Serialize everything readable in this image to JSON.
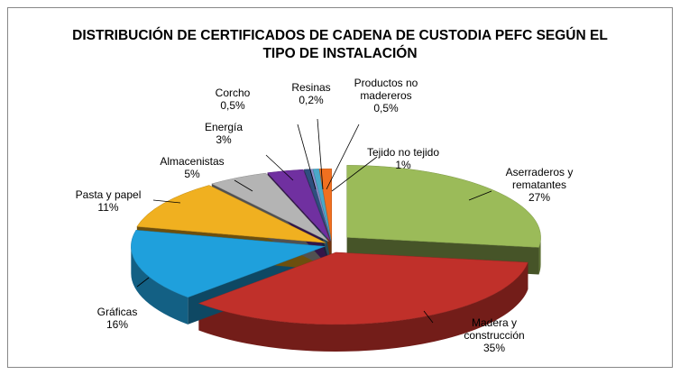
{
  "chart_data": {
    "type": "pie",
    "title": "DISTRIBUCIÓN DE CERTIFICADOS DE CADENA DE CUSTODIA PEFC SEGÚN EL TIPO DE INSTALACIÓN",
    "categories": [
      "Aserraderos y rematantes",
      "Madera y construcción",
      "Gráficas",
      "Pasta y papel",
      "Almacenistas",
      "Energía",
      "Corcho",
      "Resinas",
      "Productos no madereros",
      "Tejido no tejido"
    ],
    "values": [
      27,
      35,
      16,
      11,
      5,
      3,
      0.5,
      0.2,
      0.5,
      1
    ],
    "value_labels": [
      "27%",
      "35%",
      "16%",
      "11%",
      "5%",
      "3%",
      "0,5%",
      "0,2%",
      "0,5%",
      "1%"
    ],
    "colors": [
      "#9bbb59",
      "#c0302a",
      "#1fa0dc",
      "#f0b020",
      "#b4b4b4",
      "#7030a0",
      "#2f4f7f",
      "#8c8cc8",
      "#4aa8c8",
      "#f07020"
    ]
  }
}
